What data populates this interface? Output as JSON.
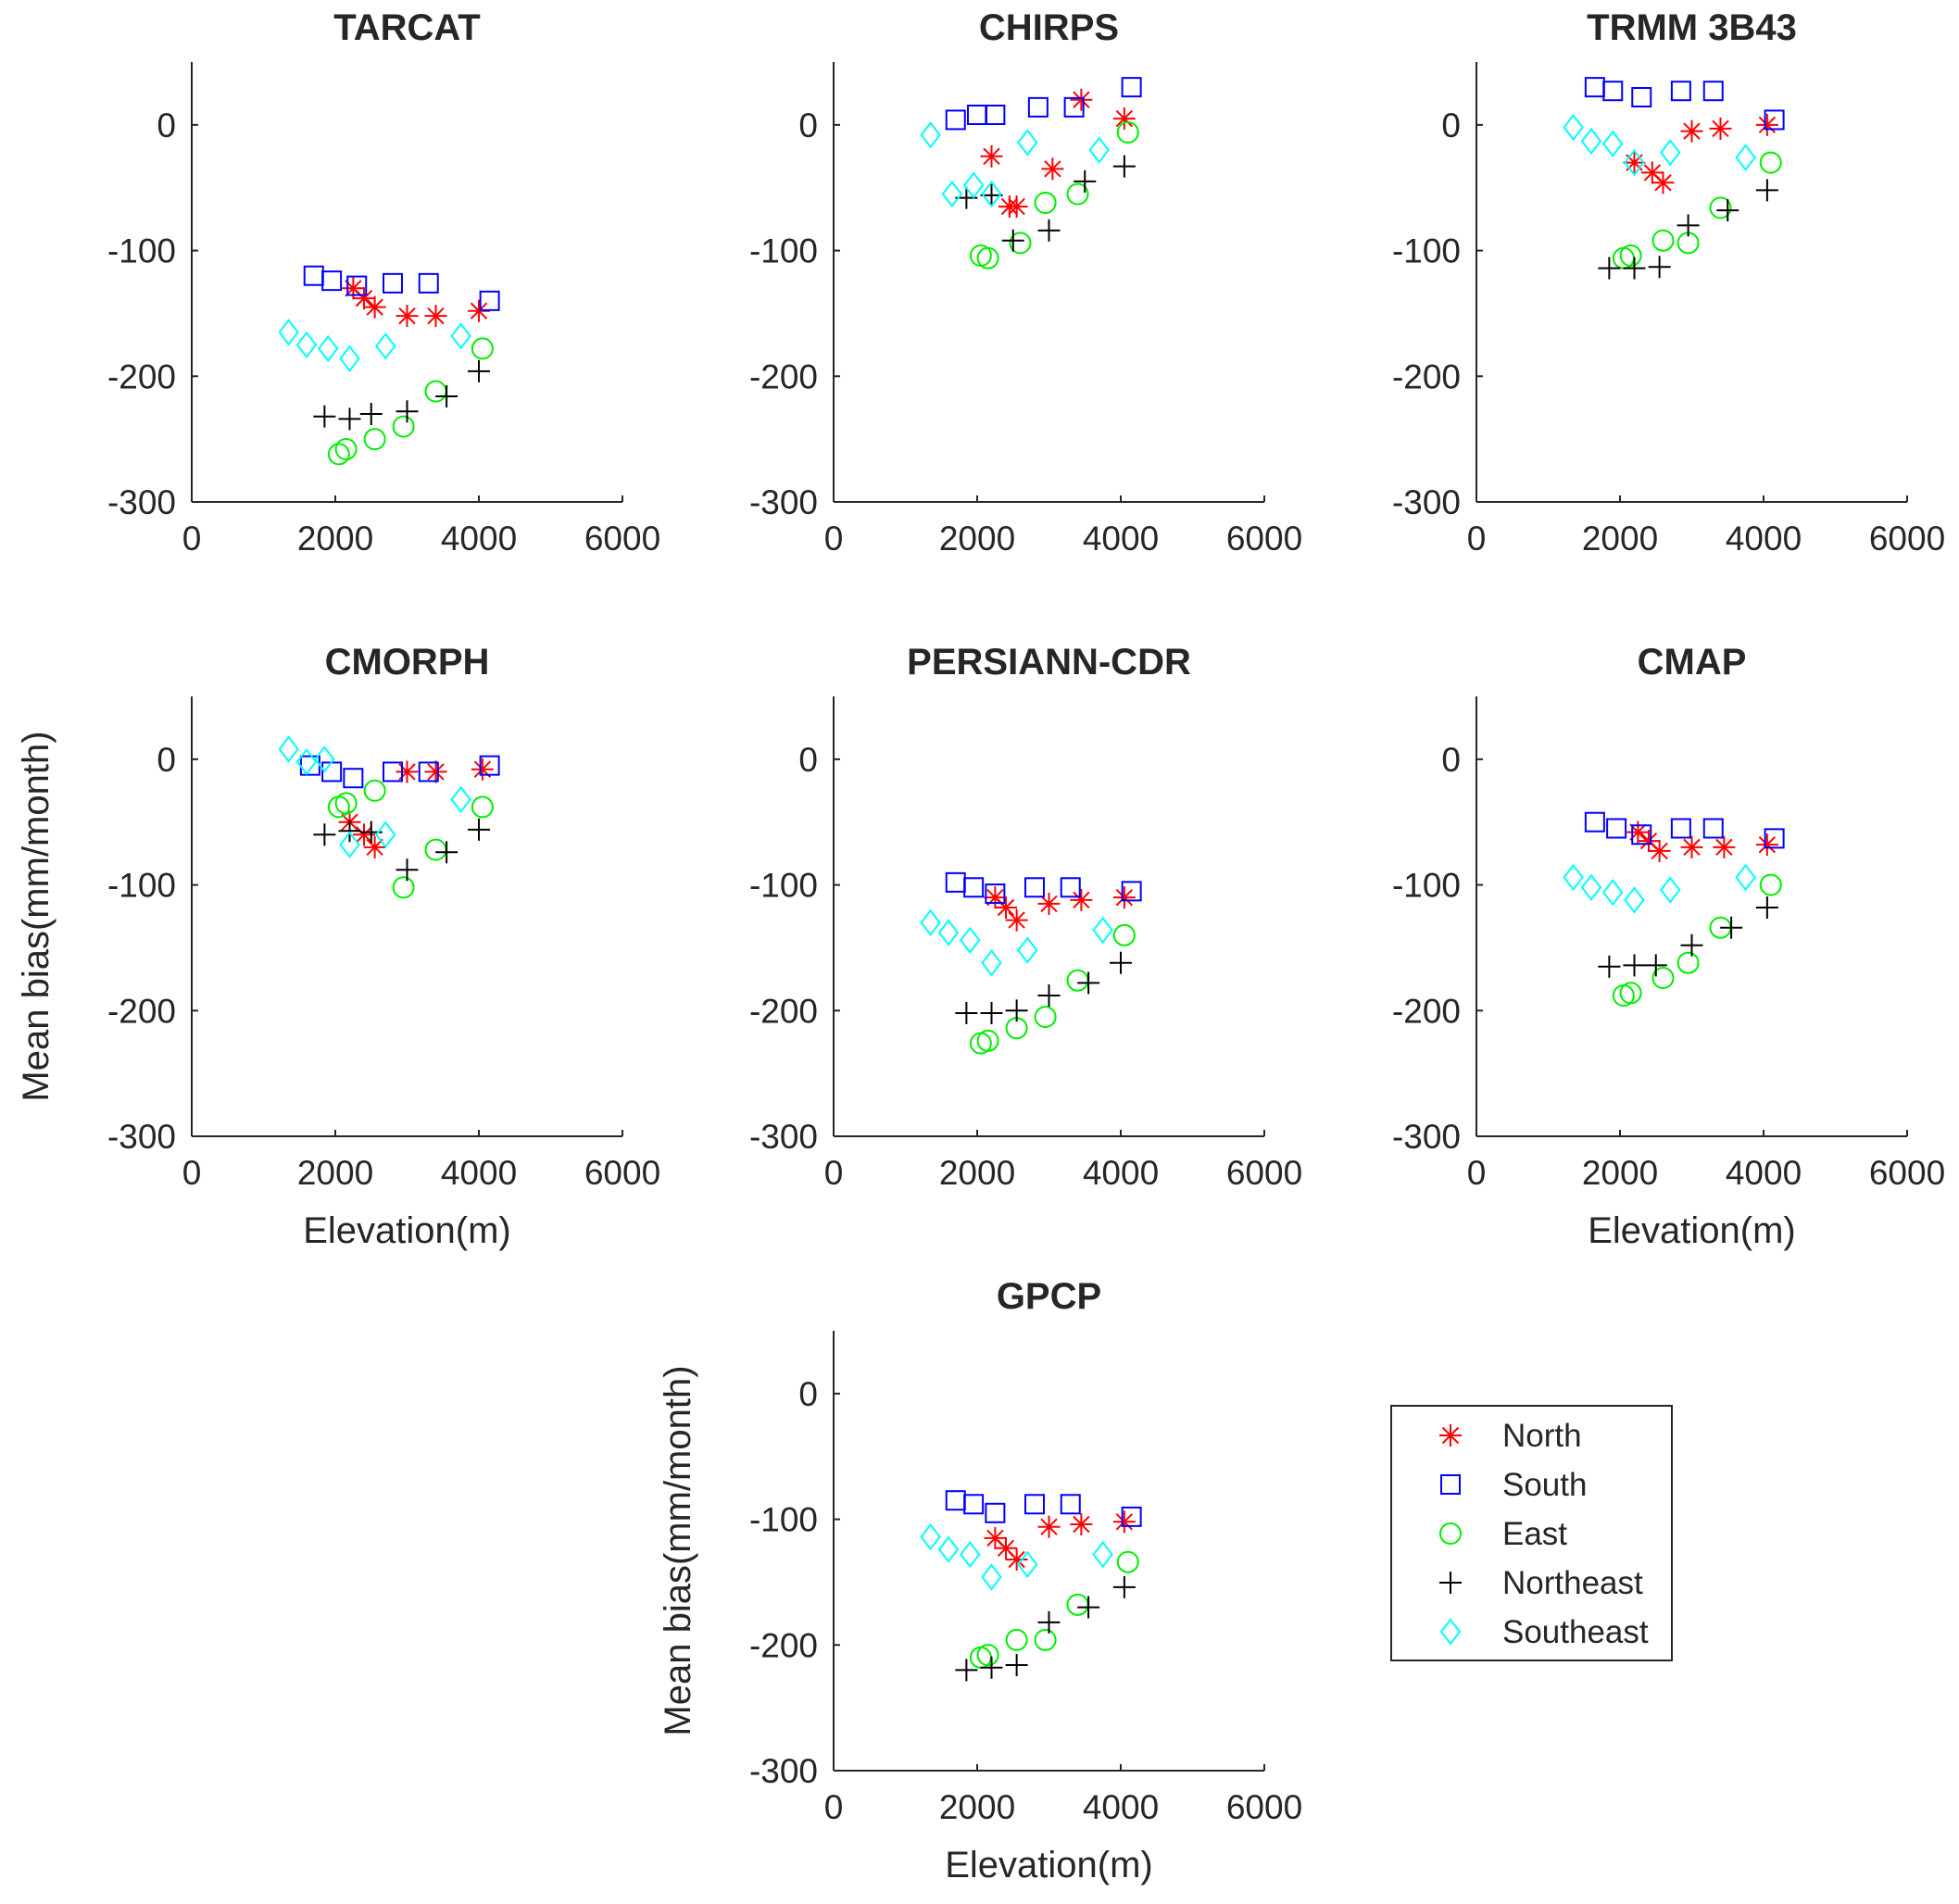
{
  "chart_data": {
    "type": "scatter",
    "figure_ylabel": "Mean bias(mm/month)",
    "figure_xlabel": "Elevation(m)",
    "xlim": [
      0,
      6000
    ],
    "ylim": [
      -300,
      50
    ],
    "xticks": [
      0,
      2000,
      4000,
      6000
    ],
    "yticks": [
      0,
      -100,
      -200,
      -300
    ],
    "legend": {
      "placement": "bottom-right",
      "entries": [
        {
          "name": "North",
          "marker": "asterisk",
          "color": "#ff0000"
        },
        {
          "name": "South",
          "marker": "square",
          "color": "#0000ff"
        },
        {
          "name": "East",
          "marker": "circle",
          "color": "#00ee00"
        },
        {
          "name": "Northeast",
          "marker": "plus",
          "color": "#000000"
        },
        {
          "name": "Southeast",
          "marker": "diamond",
          "color": "#00ffff"
        }
      ]
    },
    "panels": [
      {
        "title": "TARCAT",
        "series": {
          "North": [
            [
              2250,
              -130
            ],
            [
              2400,
              -138
            ],
            [
              2550,
              -145
            ],
            [
              3000,
              -152
            ],
            [
              3400,
              -152
            ],
            [
              4000,
              -148
            ]
          ],
          "South": [
            [
              1700,
              -120
            ],
            [
              1950,
              -124
            ],
            [
              2300,
              -128
            ],
            [
              2800,
              -126
            ],
            [
              3300,
              -126
            ],
            [
              4150,
              -140
            ]
          ],
          "East": [
            [
              2050,
              -262
            ],
            [
              2150,
              -258
            ],
            [
              2550,
              -250
            ],
            [
              2950,
              -240
            ],
            [
              3400,
              -212
            ],
            [
              4050,
              -178
            ]
          ],
          "Northeast": [
            [
              1850,
              -232
            ],
            [
              2200,
              -234
            ],
            [
              2500,
              -230
            ],
            [
              3000,
              -228
            ],
            [
              3550,
              -216
            ],
            [
              4000,
              -196
            ]
          ],
          "Southeast": [
            [
              1350,
              -165
            ],
            [
              1600,
              -175
            ],
            [
              1900,
              -178
            ],
            [
              2200,
              -186
            ],
            [
              2700,
              -176
            ],
            [
              3750,
              -168
            ]
          ]
        }
      },
      {
        "title": "CHIRPS",
        "series": {
          "North": [
            [
              2200,
              -25
            ],
            [
              2450,
              -65
            ],
            [
              2550,
              -65
            ],
            [
              3050,
              -35
            ],
            [
              3450,
              20
            ],
            [
              4050,
              5
            ]
          ],
          "South": [
            [
              1700,
              4
            ],
            [
              2000,
              8
            ],
            [
              2250,
              8
            ],
            [
              2850,
              14
            ],
            [
              3350,
              14
            ],
            [
              4150,
              30
            ]
          ],
          "East": [
            [
              2050,
              -104
            ],
            [
              2150,
              -106
            ],
            [
              2600,
              -94
            ],
            [
              2950,
              -62
            ],
            [
              3400,
              -55
            ],
            [
              4100,
              -6
            ]
          ],
          "Northeast": [
            [
              1850,
              -58
            ],
            [
              2200,
              -56
            ],
            [
              2500,
              -92
            ],
            [
              3000,
              -84
            ],
            [
              3500,
              -45
            ],
            [
              4050,
              -33
            ]
          ],
          "Southeast": [
            [
              1350,
              -8
            ],
            [
              1650,
              -55
            ],
            [
              1950,
              -48
            ],
            [
              2200,
              -55
            ],
            [
              2700,
              -14
            ],
            [
              3700,
              -20
            ]
          ]
        }
      },
      {
        "title": "TRMM 3B43",
        "series": {
          "North": [
            [
              2200,
              -30
            ],
            [
              2450,
              -38
            ],
            [
              2600,
              -46
            ],
            [
              3000,
              -5
            ],
            [
              3400,
              -3
            ],
            [
              4050,
              0
            ]
          ],
          "South": [
            [
              1650,
              30
            ],
            [
              1900,
              27
            ],
            [
              2300,
              22
            ],
            [
              2850,
              27
            ],
            [
              3300,
              27
            ],
            [
              4150,
              4
            ]
          ],
          "East": [
            [
              2050,
              -106
            ],
            [
              2150,
              -104
            ],
            [
              2600,
              -92
            ],
            [
              2950,
              -94
            ],
            [
              3400,
              -66
            ],
            [
              4100,
              -30
            ]
          ],
          "Northeast": [
            [
              1850,
              -114
            ],
            [
              2200,
              -114
            ],
            [
              2550,
              -113
            ],
            [
              2950,
              -80
            ],
            [
              3500,
              -68
            ],
            [
              4050,
              -52
            ]
          ],
          "Southeast": [
            [
              1350,
              -2
            ],
            [
              1600,
              -13
            ],
            [
              1900,
              -15
            ],
            [
              2200,
              -30
            ],
            [
              2700,
              -22
            ],
            [
              3750,
              -26
            ]
          ]
        }
      },
      {
        "title": "CMORPH",
        "series": {
          "North": [
            [
              2200,
              -50
            ],
            [
              2400,
              -60
            ],
            [
              2550,
              -70
            ],
            [
              3000,
              -10
            ],
            [
              3400,
              -10
            ],
            [
              4050,
              -8
            ]
          ],
          "South": [
            [
              1650,
              -5
            ],
            [
              1950,
              -10
            ],
            [
              2250,
              -15
            ],
            [
              2800,
              -10
            ],
            [
              3300,
              -10
            ],
            [
              4150,
              -5
            ]
          ],
          "East": [
            [
              2050,
              -38
            ],
            [
              2150,
              -35
            ],
            [
              2550,
              -25
            ],
            [
              2950,
              -102
            ],
            [
              3400,
              -72
            ],
            [
              4050,
              -38
            ]
          ],
          "Northeast": [
            [
              1850,
              -60
            ],
            [
              2200,
              -57
            ],
            [
              2500,
              -58
            ],
            [
              3000,
              -88
            ],
            [
              3550,
              -74
            ],
            [
              4000,
              -56
            ]
          ],
          "Southeast": [
            [
              1350,
              8
            ],
            [
              1600,
              -2
            ],
            [
              1850,
              0
            ],
            [
              2200,
              -68
            ],
            [
              2700,
              -60
            ],
            [
              3750,
              -32
            ]
          ]
        }
      },
      {
        "title": "PERSIANN-CDR",
        "series": {
          "North": [
            [
              2250,
              -110
            ],
            [
              2400,
              -118
            ],
            [
              2550,
              -128
            ],
            [
              3000,
              -115
            ],
            [
              3450,
              -112
            ],
            [
              4050,
              -110
            ]
          ],
          "South": [
            [
              1700,
              -98
            ],
            [
              1950,
              -102
            ],
            [
              2250,
              -107
            ],
            [
              2800,
              -102
            ],
            [
              3300,
              -102
            ],
            [
              4150,
              -105
            ]
          ],
          "East": [
            [
              2050,
              -226
            ],
            [
              2150,
              -224
            ],
            [
              2550,
              -214
            ],
            [
              2950,
              -205
            ],
            [
              3400,
              -176
            ],
            [
              4050,
              -140
            ]
          ],
          "Northeast": [
            [
              1850,
              -202
            ],
            [
              2200,
              -202
            ],
            [
              2550,
              -200
            ],
            [
              3000,
              -188
            ],
            [
              3550,
              -178
            ],
            [
              4000,
              -162
            ]
          ],
          "Southeast": [
            [
              1350,
              -130
            ],
            [
              1600,
              -138
            ],
            [
              1900,
              -144
            ],
            [
              2200,
              -162
            ],
            [
              2700,
              -152
            ],
            [
              3750,
              -136
            ]
          ]
        }
      },
      {
        "title": "CMAP",
        "series": {
          "North": [
            [
              2250,
              -58
            ],
            [
              2400,
              -65
            ],
            [
              2550,
              -73
            ],
            [
              3000,
              -70
            ],
            [
              3450,
              -70
            ],
            [
              4050,
              -68
            ]
          ],
          "South": [
            [
              1650,
              -50
            ],
            [
              1950,
              -55
            ],
            [
              2300,
              -60
            ],
            [
              2850,
              -55
            ],
            [
              3300,
              -55
            ],
            [
              4150,
              -63
            ]
          ],
          "East": [
            [
              2050,
              -188
            ],
            [
              2150,
              -186
            ],
            [
              2600,
              -174
            ],
            [
              2950,
              -162
            ],
            [
              3400,
              -134
            ],
            [
              4100,
              -100
            ]
          ],
          "Northeast": [
            [
              1850,
              -165
            ],
            [
              2200,
              -164
            ],
            [
              2500,
              -164
            ],
            [
              3000,
              -148
            ],
            [
              3550,
              -134
            ],
            [
              4050,
              -118
            ]
          ],
          "Southeast": [
            [
              1350,
              -94
            ],
            [
              1600,
              -102
            ],
            [
              1900,
              -106
            ],
            [
              2200,
              -112
            ],
            [
              2700,
              -104
            ],
            [
              3750,
              -94
            ]
          ]
        }
      },
      {
        "title": "GPCP",
        "series": {
          "North": [
            [
              2250,
              -115
            ],
            [
              2400,
              -123
            ],
            [
              2550,
              -132
            ],
            [
              3000,
              -106
            ],
            [
              3450,
              -104
            ],
            [
              4050,
              -102
            ]
          ],
          "South": [
            [
              1700,
              -85
            ],
            [
              1950,
              -88
            ],
            [
              2250,
              -95
            ],
            [
              2800,
              -88
            ],
            [
              3300,
              -88
            ],
            [
              4150,
              -98
            ]
          ],
          "East": [
            [
              2050,
              -210
            ],
            [
              2150,
              -208
            ],
            [
              2550,
              -196
            ],
            [
              2950,
              -196
            ],
            [
              3400,
              -168
            ],
            [
              4100,
              -134
            ]
          ],
          "Northeast": [
            [
              1850,
              -220
            ],
            [
              2200,
              -218
            ],
            [
              2550,
              -216
            ],
            [
              3000,
              -182
            ],
            [
              3550,
              -170
            ],
            [
              4050,
              -154
            ]
          ],
          "Southeast": [
            [
              1350,
              -114
            ],
            [
              1600,
              -124
            ],
            [
              1900,
              -128
            ],
            [
              2200,
              -146
            ],
            [
              2700,
              -136
            ],
            [
              3750,
              -128
            ]
          ]
        }
      }
    ]
  }
}
